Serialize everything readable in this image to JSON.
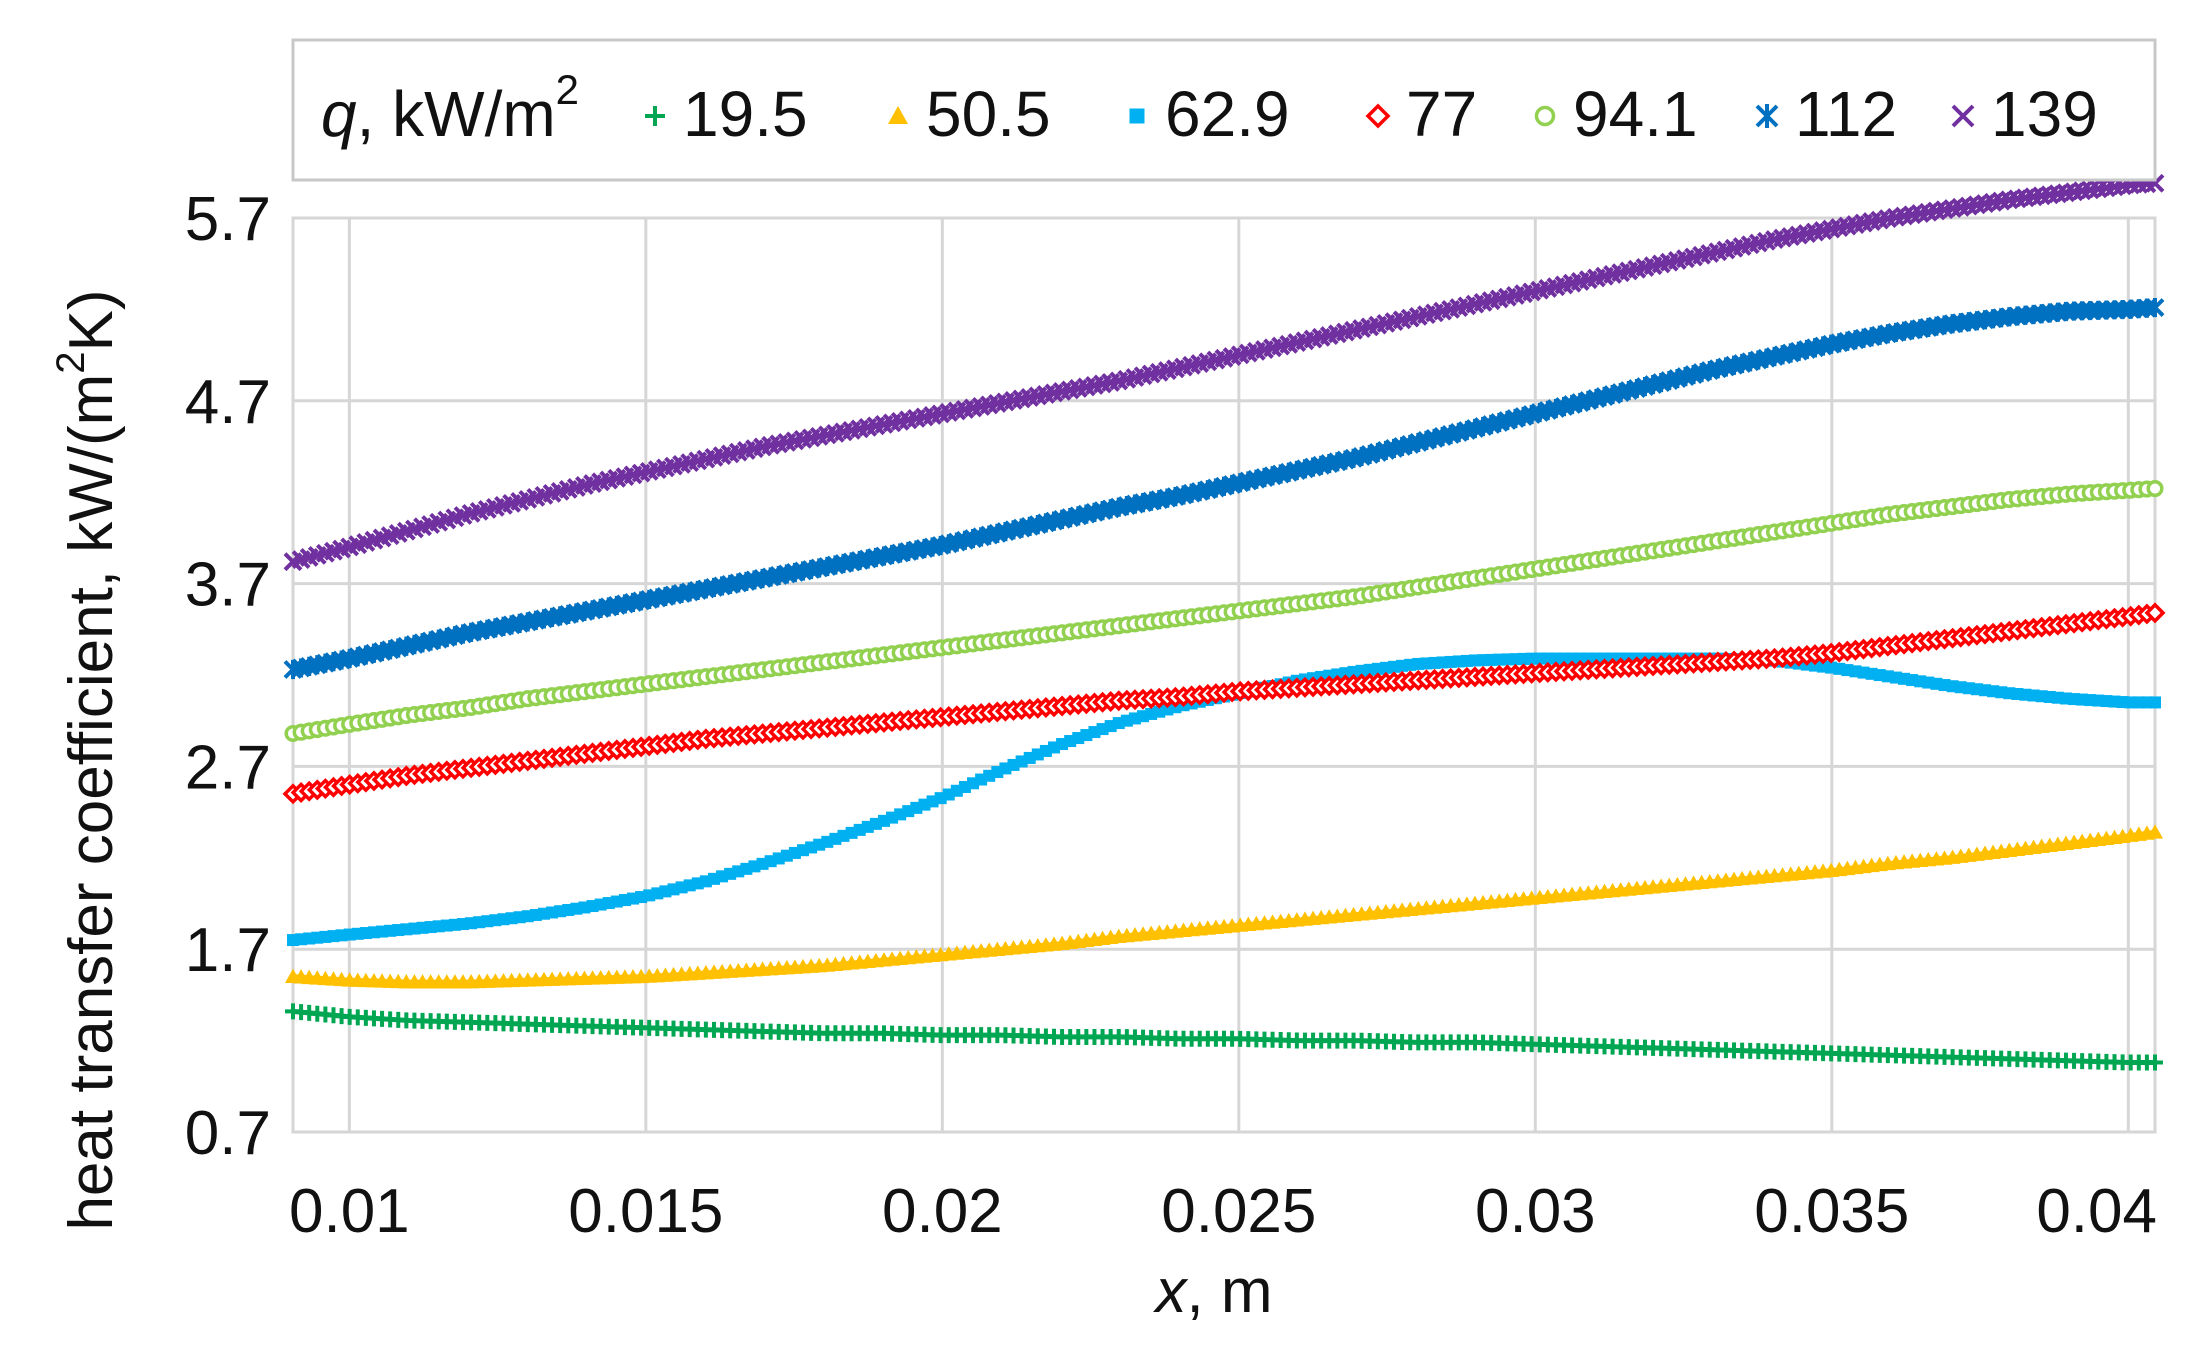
{
  "chart_data": {
    "type": "line",
    "title": "",
    "legend_title_italic": "q",
    "legend_title_rest": ", kW/m",
    "legend_title_sup": "2",
    "xlabel_italic": "x",
    "xlabel_rest": ", m",
    "ylabel_main": "heat transfer coefficient, kW/(m",
    "ylabel_sup": "2",
    "ylabel_tail": "K)",
    "xlim": [
      0.00905,
      0.04045
    ],
    "ylim": [
      0.7,
      5.7
    ],
    "x_ticks": [
      0.01,
      0.015,
      0.02,
      0.025,
      0.03,
      0.035,
      0.04
    ],
    "x_tick_labels": [
      "0.01",
      "0.015",
      "0.02",
      "0.025",
      "0.03",
      "0.035",
      "0.04"
    ],
    "y_ticks": [
      0.7,
      1.7,
      2.7,
      3.7,
      4.7,
      5.7
    ],
    "y_tick_labels": [
      "0.7",
      "1.7",
      "2.7",
      "3.7",
      "4.7",
      "5.7"
    ],
    "grid": true,
    "legend_position": "top",
    "x": [
      0.00905,
      0.01,
      0.011,
      0.012,
      0.013,
      0.014,
      0.015,
      0.016,
      0.017,
      0.018,
      0.019,
      0.02,
      0.021,
      0.022,
      0.023,
      0.024,
      0.025,
      0.026,
      0.027,
      0.028,
      0.029,
      0.03,
      0.031,
      0.032,
      0.033,
      0.034,
      0.035,
      0.036,
      0.037,
      0.038,
      0.039,
      0.04,
      0.04045
    ],
    "series": [
      {
        "name": "19.5",
        "marker": "plus",
        "color": "#00a651",
        "values": [
          1.36,
          1.33,
          1.31,
          1.3,
          1.29,
          1.28,
          1.27,
          1.26,
          1.25,
          1.24,
          1.24,
          1.23,
          1.23,
          1.22,
          1.22,
          1.21,
          1.21,
          1.2,
          1.2,
          1.19,
          1.19,
          1.18,
          1.17,
          1.16,
          1.15,
          1.14,
          1.13,
          1.12,
          1.11,
          1.1,
          1.09,
          1.08,
          1.08
        ]
      },
      {
        "name": "50.5",
        "marker": "triangle",
        "color": "#ffc000",
        "values": [
          1.55,
          1.53,
          1.52,
          1.52,
          1.53,
          1.54,
          1.55,
          1.57,
          1.59,
          1.61,
          1.64,
          1.67,
          1.7,
          1.73,
          1.77,
          1.8,
          1.83,
          1.86,
          1.89,
          1.92,
          1.95,
          1.98,
          2.01,
          2.04,
          2.07,
          2.1,
          2.13,
          2.17,
          2.2,
          2.24,
          2.28,
          2.32,
          2.34
        ]
      },
      {
        "name": "62.9",
        "marker": "square",
        "color": "#00b0f0",
        "values": [
          1.75,
          1.78,
          1.81,
          1.84,
          1.88,
          1.93,
          1.99,
          2.07,
          2.17,
          2.28,
          2.4,
          2.53,
          2.68,
          2.82,
          2.94,
          3.03,
          3.1,
          3.17,
          3.22,
          3.26,
          3.28,
          3.29,
          3.29,
          3.29,
          3.29,
          3.28,
          3.24,
          3.19,
          3.14,
          3.1,
          3.07,
          3.05,
          3.05
        ]
      },
      {
        "name": "77",
        "marker": "diamond",
        "color": "#ff0000",
        "values": [
          2.55,
          2.6,
          2.65,
          2.69,
          2.73,
          2.77,
          2.81,
          2.85,
          2.88,
          2.91,
          2.94,
          2.97,
          3.0,
          3.03,
          3.06,
          3.08,
          3.11,
          3.13,
          3.15,
          3.17,
          3.19,
          3.21,
          3.23,
          3.25,
          3.27,
          3.29,
          3.32,
          3.36,
          3.4,
          3.44,
          3.48,
          3.52,
          3.54
        ]
      },
      {
        "name": "94.1",
        "marker": "circle",
        "color": "#92d050",
        "values": [
          2.88,
          2.93,
          2.98,
          3.02,
          3.07,
          3.11,
          3.15,
          3.19,
          3.23,
          3.27,
          3.31,
          3.35,
          3.39,
          3.43,
          3.47,
          3.51,
          3.55,
          3.59,
          3.63,
          3.68,
          3.73,
          3.78,
          3.83,
          3.88,
          3.93,
          3.98,
          4.03,
          4.08,
          4.12,
          4.16,
          4.19,
          4.21,
          4.22
        ]
      },
      {
        "name": "112",
        "marker": "star",
        "color": "#0070c0",
        "values": [
          3.23,
          3.29,
          3.36,
          3.43,
          3.49,
          3.55,
          3.61,
          3.67,
          3.73,
          3.79,
          3.85,
          3.91,
          3.98,
          4.05,
          4.12,
          4.18,
          4.25,
          4.32,
          4.39,
          4.47,
          4.55,
          4.63,
          4.71,
          4.79,
          4.87,
          4.94,
          5.01,
          5.07,
          5.12,
          5.16,
          5.19,
          5.2,
          5.21
        ]
      },
      {
        "name": "139",
        "marker": "x",
        "color": "#7030a0",
        "values": [
          3.82,
          3.9,
          3.99,
          4.08,
          4.16,
          4.24,
          4.31,
          4.38,
          4.45,
          4.51,
          4.57,
          4.63,
          4.69,
          4.75,
          4.81,
          4.88,
          4.95,
          5.02,
          5.09,
          5.16,
          5.23,
          5.3,
          5.37,
          5.44,
          5.51,
          5.58,
          5.64,
          5.7,
          5.75,
          5.8,
          5.84,
          5.88,
          5.89
        ]
      }
    ]
  }
}
